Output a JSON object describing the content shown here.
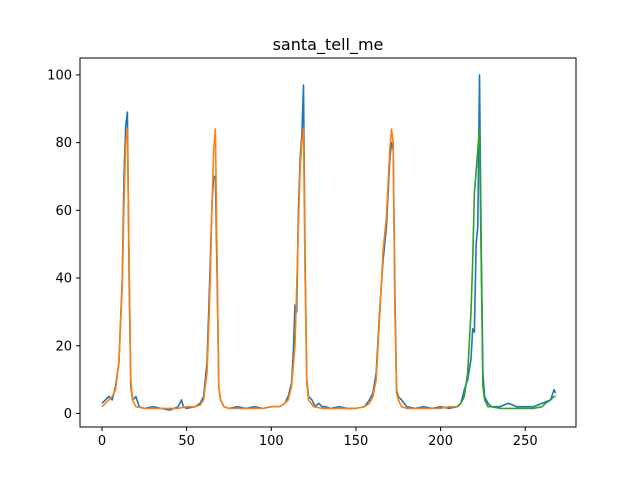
{
  "chart_data": {
    "type": "line",
    "title": "santa_tell_me",
    "xlabel": "",
    "ylabel": "",
    "xlim": [
      -13,
      280
    ],
    "ylim": [
      -4,
      105
    ],
    "xticks": [
      0,
      50,
      100,
      150,
      200,
      250
    ],
    "yticks": [
      0,
      20,
      40,
      60,
      80,
      100
    ],
    "grid": false,
    "series": [
      {
        "color": "#1f77b4",
        "points": [
          [
            0,
            3
          ],
          [
            2,
            4
          ],
          [
            4,
            5
          ],
          [
            6,
            4
          ],
          [
            8,
            8
          ],
          [
            10,
            15
          ],
          [
            12,
            40
          ],
          [
            13,
            70
          ],
          [
            14,
            85
          ],
          [
            15,
            89
          ],
          [
            16,
            40
          ],
          [
            17,
            8
          ],
          [
            18,
            4
          ],
          [
            20,
            5
          ],
          [
            22,
            2
          ],
          [
            25,
            1.5
          ],
          [
            30,
            2
          ],
          [
            35,
            1.5
          ],
          [
            40,
            1
          ],
          [
            45,
            2
          ],
          [
            47,
            4
          ],
          [
            48,
            2
          ],
          [
            50,
            1.5
          ],
          [
            55,
            2
          ],
          [
            58,
            3
          ],
          [
            60,
            5
          ],
          [
            62,
            15
          ],
          [
            63,
            30
          ],
          [
            64,
            45
          ],
          [
            65,
            62
          ],
          [
            66,
            70
          ],
          [
            67,
            70
          ],
          [
            68,
            40
          ],
          [
            69,
            8
          ],
          [
            70,
            4
          ],
          [
            72,
            2
          ],
          [
            75,
            1.5
          ],
          [
            80,
            2
          ],
          [
            85,
            1.5
          ],
          [
            90,
            2
          ],
          [
            95,
            1.5
          ],
          [
            100,
            2
          ],
          [
            105,
            2
          ],
          [
            108,
            3
          ],
          [
            110,
            5
          ],
          [
            112,
            9
          ],
          [
            113,
            18
          ],
          [
            114,
            32
          ],
          [
            115,
            30
          ],
          [
            116,
            60
          ],
          [
            117,
            75
          ],
          [
            118,
            82
          ],
          [
            119,
            97
          ],
          [
            120,
            45
          ],
          [
            121,
            10
          ],
          [
            122,
            5
          ],
          [
            124,
            4
          ],
          [
            126,
            2
          ],
          [
            128,
            3
          ],
          [
            130,
            2
          ],
          [
            132,
            2
          ],
          [
            135,
            1.5
          ],
          [
            140,
            2
          ],
          [
            145,
            1.5
          ],
          [
            150,
            1.5
          ],
          [
            155,
            2
          ],
          [
            158,
            4
          ],
          [
            160,
            6
          ],
          [
            162,
            12
          ],
          [
            164,
            30
          ],
          [
            166,
            45
          ],
          [
            168,
            55
          ],
          [
            170,
            75
          ],
          [
            171,
            80
          ],
          [
            172,
            78
          ],
          [
            173,
            35
          ],
          [
            174,
            7
          ],
          [
            175,
            5
          ],
          [
            177,
            4
          ],
          [
            180,
            2
          ],
          [
            185,
            1.5
          ],
          [
            190,
            2
          ],
          [
            195,
            1.5
          ],
          [
            200,
            2
          ],
          [
            205,
            1.5
          ],
          [
            210,
            2
          ],
          [
            212,
            3
          ],
          [
            214,
            7
          ],
          [
            216,
            10
          ],
          [
            218,
            16
          ],
          [
            219,
            25
          ],
          [
            220,
            24
          ],
          [
            221,
            50
          ],
          [
            222,
            55
          ],
          [
            223,
            100
          ],
          [
            224,
            50
          ],
          [
            225,
            12
          ],
          [
            226,
            5
          ],
          [
            228,
            3
          ],
          [
            230,
            2
          ],
          [
            235,
            2
          ],
          [
            240,
            3
          ],
          [
            245,
            2
          ],
          [
            250,
            2
          ],
          [
            255,
            2
          ],
          [
            260,
            3
          ],
          [
            265,
            4
          ],
          [
            267,
            7
          ],
          [
            268,
            6
          ]
        ]
      },
      {
        "color": "#ff7f0e",
        "points": [
          [
            0,
            2
          ],
          [
            2,
            3
          ],
          [
            4,
            4
          ],
          [
            6,
            5
          ],
          [
            8,
            7
          ],
          [
            10,
            15
          ],
          [
            12,
            38
          ],
          [
            13,
            62
          ],
          [
            14,
            80
          ],
          [
            15,
            84
          ],
          [
            16,
            45
          ],
          [
            17,
            10
          ],
          [
            18,
            4
          ],
          [
            20,
            2
          ],
          [
            25,
            1.5
          ],
          [
            30,
            1.5
          ],
          [
            35,
            1.5
          ],
          [
            40,
            1.5
          ],
          [
            45,
            1.5
          ],
          [
            50,
            2
          ],
          [
            55,
            2
          ],
          [
            58,
            2.5
          ],
          [
            60,
            4
          ],
          [
            62,
            12
          ],
          [
            63,
            25
          ],
          [
            64,
            40
          ],
          [
            65,
            62
          ],
          [
            66,
            78
          ],
          [
            67,
            84
          ],
          [
            68,
            45
          ],
          [
            69,
            8
          ],
          [
            70,
            4
          ],
          [
            72,
            2
          ],
          [
            75,
            1.5
          ],
          [
            80,
            1.5
          ],
          [
            85,
            1.5
          ],
          [
            90,
            1.5
          ],
          [
            95,
            1.5
          ],
          [
            100,
            2
          ],
          [
            105,
            2
          ],
          [
            108,
            3
          ],
          [
            110,
            4
          ],
          [
            112,
            8
          ],
          [
            114,
            20
          ],
          [
            116,
            55
          ],
          [
            117,
            72
          ],
          [
            118,
            80
          ],
          [
            119,
            84
          ],
          [
            120,
            40
          ],
          [
            121,
            9
          ],
          [
            122,
            4
          ],
          [
            125,
            2
          ],
          [
            130,
            1.5
          ],
          [
            135,
            1.5
          ],
          [
            140,
            1.5
          ],
          [
            145,
            1.5
          ],
          [
            150,
            1.5
          ],
          [
            155,
            2
          ],
          [
            158,
            3
          ],
          [
            160,
            5
          ],
          [
            162,
            10
          ],
          [
            164,
            28
          ],
          [
            166,
            48
          ],
          [
            168,
            58
          ],
          [
            170,
            78
          ],
          [
            171,
            84
          ],
          [
            172,
            80
          ],
          [
            173,
            30
          ],
          [
            174,
            6
          ],
          [
            175,
            4
          ],
          [
            177,
            2
          ],
          [
            180,
            1.5
          ],
          [
            185,
            1.5
          ],
          [
            190,
            1.5
          ],
          [
            195,
            1.5
          ],
          [
            200,
            1.5
          ],
          [
            205,
            2
          ],
          [
            210,
            2
          ]
        ]
      },
      {
        "color": "#2ca02c",
        "points": [
          [
            210,
            2
          ],
          [
            212,
            3
          ],
          [
            214,
            5
          ],
          [
            216,
            12
          ],
          [
            218,
            30
          ],
          [
            219,
            45
          ],
          [
            220,
            65
          ],
          [
            222,
            78
          ],
          [
            223,
            84
          ],
          [
            224,
            45
          ],
          [
            225,
            8
          ],
          [
            226,
            4
          ],
          [
            228,
            2
          ],
          [
            230,
            2
          ],
          [
            235,
            1.5
          ],
          [
            240,
            1.5
          ],
          [
            245,
            1.5
          ],
          [
            250,
            1.5
          ],
          [
            255,
            1.5
          ],
          [
            260,
            2
          ],
          [
            262,
            3
          ],
          [
            265,
            4
          ],
          [
            267,
            5
          ],
          [
            268,
            5
          ]
        ]
      }
    ]
  }
}
